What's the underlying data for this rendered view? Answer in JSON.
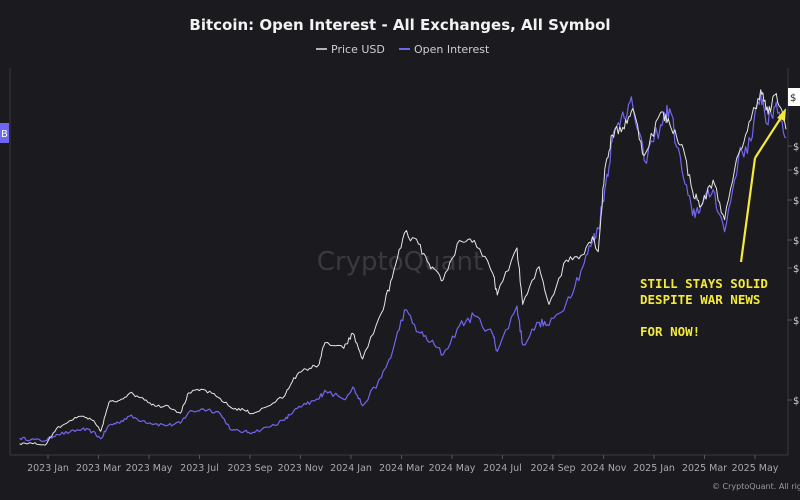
{
  "chart_data": {
    "type": "line",
    "title": "Bitcoin: Open Interest - All Exchanges, All Symbol",
    "legend": [
      {
        "name": "Price USD",
        "color": "#e6e6e6"
      },
      {
        "name": "Open Interest",
        "color": "#6f66ee"
      }
    ],
    "legend_placement": "top-center",
    "x_ticks": [
      "2023 Jan",
      "2023 Mar",
      "2023 May",
      "2023 Jul",
      "2023 Sep",
      "2023 Nov",
      "2024 Jan",
      "2024 Mar",
      "2024 May",
      "2024 Jul",
      "2024 Sep",
      "2024 Nov",
      "2025 Jan",
      "2025 Mar",
      "2025 May"
    ],
    "left_axis_badge": "B",
    "right_axis_badge": "$",
    "grid": false,
    "series": [
      {
        "name": "Price USD",
        "color": "#e6e6e6",
        "points": [
          [
            "2022-12-01",
            17000
          ],
          [
            "2022-12-15",
            17200
          ],
          [
            "2023-01-01",
            16600
          ],
          [
            "2023-01-15",
            21000
          ],
          [
            "2023-01-31",
            23100
          ],
          [
            "2023-02-15",
            24300
          ],
          [
            "2023-02-28",
            23200
          ],
          [
            "2023-03-10",
            20300
          ],
          [
            "2023-03-20",
            28000
          ],
          [
            "2023-03-31",
            28400
          ],
          [
            "2023-04-14",
            30400
          ],
          [
            "2023-04-30",
            29200
          ],
          [
            "2023-05-15",
            27000
          ],
          [
            "2023-05-31",
            27100
          ],
          [
            "2023-06-15",
            25100
          ],
          [
            "2023-06-25",
            30500
          ],
          [
            "2023-07-13",
            31400
          ],
          [
            "2023-07-31",
            29300
          ],
          [
            "2023-08-17",
            26400
          ],
          [
            "2023-08-31",
            26000
          ],
          [
            "2023-09-11",
            25000
          ],
          [
            "2023-09-30",
            27000
          ],
          [
            "2023-10-20",
            29700
          ],
          [
            "2023-10-31",
            34500
          ],
          [
            "2023-11-15",
            36800
          ],
          [
            "2023-11-30",
            37800
          ],
          [
            "2023-12-08",
            43800
          ],
          [
            "2023-12-31",
            42300
          ],
          [
            "2024-01-11",
            46300
          ],
          [
            "2024-01-23",
            39500
          ],
          [
            "2024-02-15",
            51800
          ],
          [
            "2024-02-28",
            61000
          ],
          [
            "2024-03-14",
            73000
          ],
          [
            "2024-03-31",
            70000
          ],
          [
            "2024-04-15",
            63500
          ],
          [
            "2024-04-30",
            60500
          ],
          [
            "2024-05-20",
            71000
          ],
          [
            "2024-06-07",
            71000
          ],
          [
            "2024-06-30",
            62000
          ],
          [
            "2024-07-05",
            56500
          ],
          [
            "2024-07-29",
            69000
          ],
          [
            "2024-08-05",
            54000
          ],
          [
            "2024-08-25",
            64000
          ],
          [
            "2024-09-06",
            54000
          ],
          [
            "2024-09-27",
            65800
          ],
          [
            "2024-10-15",
            67000
          ],
          [
            "2024-10-29",
            72000
          ],
          [
            "2024-11-05",
            68000
          ],
          [
            "2024-11-13",
            90000
          ],
          [
            "2024-11-22",
            99000
          ],
          [
            "2024-12-05",
            101000
          ],
          [
            "2024-12-17",
            106000
          ],
          [
            "2024-12-31",
            93500
          ],
          [
            "2025-01-20",
            105000
          ],
          [
            "2025-01-31",
            102000
          ],
          [
            "2025-02-15",
            96500
          ],
          [
            "2025-02-28",
            84000
          ],
          [
            "2025-03-10",
            80000
          ],
          [
            "2025-03-25",
            87000
          ],
          [
            "2025-04-08",
            76500
          ],
          [
            "2025-04-25",
            94000
          ],
          [
            "2025-05-10",
            103000
          ],
          [
            "2025-05-22",
            111000
          ],
          [
            "2025-05-31",
            104500
          ],
          [
            "2025-06-10",
            110000
          ],
          [
            "2025-06-22",
            100500
          ]
        ]
      },
      {
        "name": "Open Interest",
        "color": "#6f66ee",
        "points": [
          [
            "2022-12-01",
            9.6
          ],
          [
            "2022-12-15",
            9.4
          ],
          [
            "2023-01-01",
            9.2
          ],
          [
            "2023-01-15",
            10.2
          ],
          [
            "2023-01-31",
            10.5
          ],
          [
            "2023-02-15",
            11.0
          ],
          [
            "2023-02-28",
            10.6
          ],
          [
            "2023-03-10",
            9.5
          ],
          [
            "2023-03-20",
            11.6
          ],
          [
            "2023-03-31",
            12.0
          ],
          [
            "2023-04-14",
            13.0
          ],
          [
            "2023-04-30",
            12.3
          ],
          [
            "2023-05-15",
            11.8
          ],
          [
            "2023-05-31",
            11.6
          ],
          [
            "2023-06-15",
            11.9
          ],
          [
            "2023-06-25",
            13.6
          ],
          [
            "2023-07-13",
            14.1
          ],
          [
            "2023-07-31",
            13.7
          ],
          [
            "2023-08-17",
            10.8
          ],
          [
            "2023-08-31",
            10.6
          ],
          [
            "2023-09-11",
            10.5
          ],
          [
            "2023-09-30",
            11.3
          ],
          [
            "2023-10-20",
            12.4
          ],
          [
            "2023-10-31",
            13.8
          ],
          [
            "2023-11-15",
            14.8
          ],
          [
            "2023-11-30",
            15.6
          ],
          [
            "2023-12-08",
            17.0
          ],
          [
            "2023-12-31",
            15.6
          ],
          [
            "2024-01-11",
            17.5
          ],
          [
            "2024-01-23",
            14.6
          ],
          [
            "2024-02-15",
            19.0
          ],
          [
            "2024-02-28",
            22.8
          ],
          [
            "2024-03-14",
            29.4
          ],
          [
            "2024-03-31",
            26.0
          ],
          [
            "2024-04-15",
            24.5
          ],
          [
            "2024-04-30",
            22.5
          ],
          [
            "2024-05-20",
            27.0
          ],
          [
            "2024-06-07",
            28.5
          ],
          [
            "2024-06-30",
            25.5
          ],
          [
            "2024-07-05",
            23.0
          ],
          [
            "2024-07-29",
            30.0
          ],
          [
            "2024-08-05",
            24.0
          ],
          [
            "2024-08-25",
            27.5
          ],
          [
            "2024-09-06",
            27.0
          ],
          [
            "2024-09-27",
            30.5
          ],
          [
            "2024-10-15",
            35.5
          ],
          [
            "2024-10-29",
            40.0
          ],
          [
            "2024-11-05",
            42.0
          ],
          [
            "2024-11-13",
            48.0
          ],
          [
            "2024-11-22",
            55.5
          ],
          [
            "2024-12-05",
            60.0
          ],
          [
            "2024-12-17",
            61.0
          ],
          [
            "2024-12-31",
            52.5
          ],
          [
            "2025-01-20",
            58.0
          ],
          [
            "2025-01-31",
            60.5
          ],
          [
            "2025-02-15",
            51.0
          ],
          [
            "2025-02-28",
            44.0
          ],
          [
            "2025-03-10",
            45.5
          ],
          [
            "2025-03-25",
            48.0
          ],
          [
            "2025-04-08",
            41.5
          ],
          [
            "2025-04-25",
            53.0
          ],
          [
            "2025-05-10",
            55.5
          ],
          [
            "2025-05-22",
            63.0
          ],
          [
            "2025-05-31",
            58.0
          ],
          [
            "2025-06-10",
            61.5
          ],
          [
            "2025-06-22",
            56.0
          ]
        ]
      }
    ],
    "annotations": [
      {
        "lines": [
          "STILL STAYS SOLID",
          "DESPITE WAR NEWS",
          "",
          "FOR NOW!"
        ],
        "color": "#f4ea3a"
      }
    ],
    "watermark": "CryptoQuant",
    "credit": "© CryptoQuant. All rights reserved."
  }
}
